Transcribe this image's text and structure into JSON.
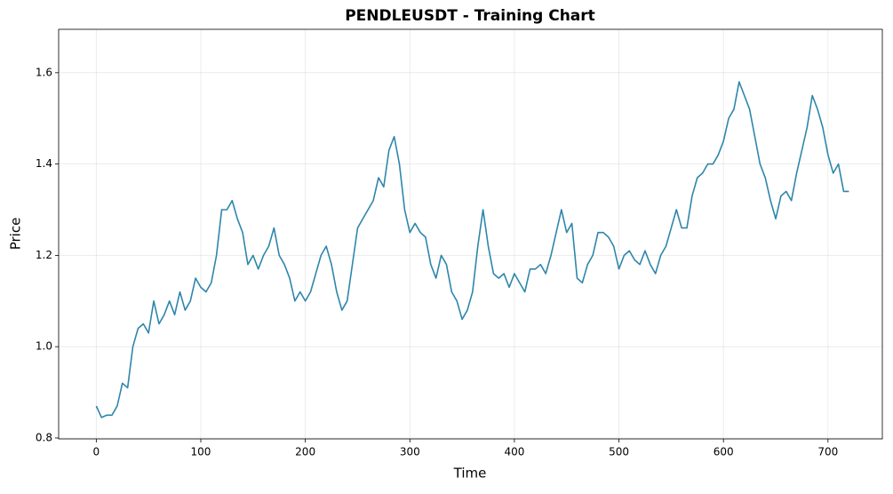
{
  "chart_data": {
    "type": "line",
    "title": "PENDLEUSDT - Training Chart",
    "xlabel": "Time",
    "ylabel": "Price",
    "x": [
      0,
      5,
      10,
      15,
      20,
      25,
      30,
      35,
      40,
      45,
      50,
      55,
      60,
      65,
      70,
      75,
      80,
      85,
      90,
      95,
      100,
      105,
      110,
      115,
      120,
      125,
      130,
      135,
      140,
      145,
      150,
      155,
      160,
      165,
      170,
      175,
      180,
      185,
      190,
      195,
      200,
      205,
      210,
      215,
      220,
      225,
      230,
      235,
      240,
      245,
      250,
      255,
      260,
      265,
      270,
      275,
      280,
      285,
      290,
      295,
      300,
      305,
      310,
      315,
      320,
      325,
      330,
      335,
      340,
      345,
      350,
      355,
      360,
      365,
      370,
      375,
      380,
      385,
      390,
      395,
      400,
      405,
      410,
      415,
      420,
      425,
      430,
      435,
      440,
      445,
      450,
      455,
      460,
      465,
      470,
      475,
      480,
      485,
      490,
      495,
      500,
      505,
      510,
      515,
      520,
      525,
      530,
      535,
      540,
      545,
      550,
      555,
      560,
      565,
      570,
      575,
      580,
      585,
      590,
      595,
      600,
      605,
      610,
      615,
      620,
      625,
      630,
      635,
      640,
      645,
      650,
      655,
      660,
      665,
      670,
      675,
      680,
      685,
      690,
      695,
      700,
      705,
      710,
      715,
      720
    ],
    "series": [
      {
        "name": "PENDLEUSDT",
        "color": "#2e86ab",
        "values": [
          0.87,
          0.845,
          0.85,
          0.85,
          0.87,
          0.92,
          0.91,
          1.0,
          1.04,
          1.05,
          1.03,
          1.1,
          1.05,
          1.07,
          1.1,
          1.07,
          1.12,
          1.08,
          1.1,
          1.15,
          1.13,
          1.12,
          1.14,
          1.2,
          1.3,
          1.3,
          1.32,
          1.28,
          1.25,
          1.18,
          1.2,
          1.17,
          1.2,
          1.22,
          1.26,
          1.2,
          1.18,
          1.15,
          1.1,
          1.12,
          1.1,
          1.12,
          1.16,
          1.2,
          1.22,
          1.18,
          1.12,
          1.08,
          1.1,
          1.18,
          1.26,
          1.28,
          1.3,
          1.32,
          1.37,
          1.35,
          1.43,
          1.46,
          1.4,
          1.3,
          1.25,
          1.27,
          1.25,
          1.24,
          1.18,
          1.15,
          1.2,
          1.18,
          1.12,
          1.1,
          1.06,
          1.08,
          1.12,
          1.22,
          1.3,
          1.22,
          1.16,
          1.15,
          1.16,
          1.13,
          1.16,
          1.14,
          1.12,
          1.17,
          1.17,
          1.18,
          1.16,
          1.2,
          1.25,
          1.3,
          1.25,
          1.27,
          1.15,
          1.14,
          1.18,
          1.2,
          1.25,
          1.25,
          1.24,
          1.22,
          1.17,
          1.2,
          1.21,
          1.19,
          1.18,
          1.21,
          1.18,
          1.16,
          1.2,
          1.22,
          1.26,
          1.3,
          1.26,
          1.26,
          1.33,
          1.37,
          1.38,
          1.4,
          1.4,
          1.42,
          1.45,
          1.5,
          1.52,
          1.58,
          1.55,
          1.52,
          1.46,
          1.4,
          1.37,
          1.32,
          1.28,
          1.33,
          1.34,
          1.32,
          1.38,
          1.43,
          1.48,
          1.55,
          1.52,
          1.48,
          1.42,
          1.38,
          1.4,
          1.34,
          1.34
        ]
      }
    ],
    "xlim": [
      -36,
      752
    ],
    "ylim": [
      0.798,
      1.695
    ],
    "xticks": [
      0,
      100,
      200,
      300,
      400,
      500,
      600,
      700
    ],
    "yticks": [
      0.8,
      {
        "value": 1,
        "label": "1.0"
      },
      1.2,
      1.4,
      1.6
    ],
    "grid": true
  }
}
